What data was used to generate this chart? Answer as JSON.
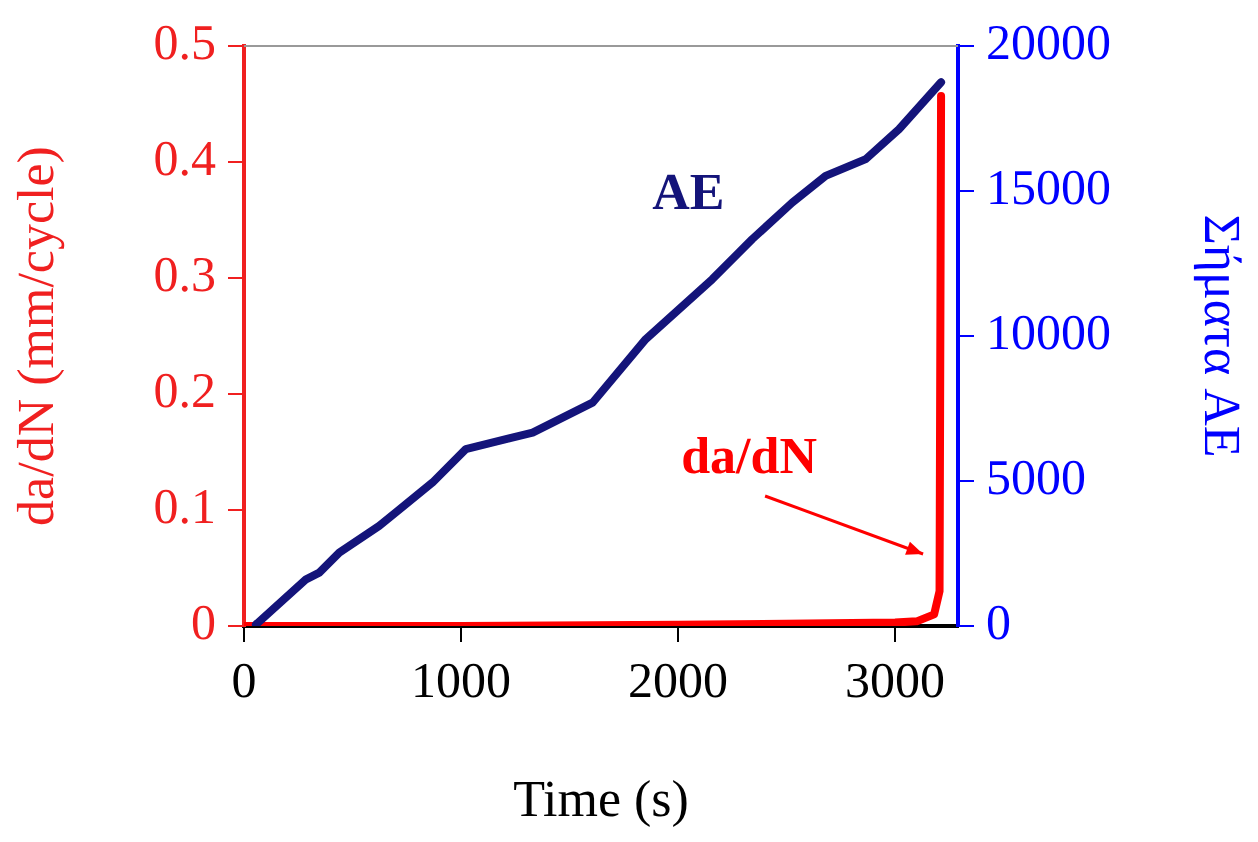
{
  "chart_data": {
    "type": "line",
    "xlabel": "Time (s)",
    "ylabel": "da/dN (mm/cycle)",
    "y2label": "Σήματα AE",
    "xlim": [
      0,
      3290
    ],
    "xticks": [
      0,
      1000,
      2000,
      3000
    ],
    "ylim": [
      0,
      0.5
    ],
    "yticks": [
      0,
      0.1,
      0.2,
      0.3,
      0.4,
      0.5
    ],
    "y2lim": [
      0,
      20000
    ],
    "y2ticks": [
      0,
      5000,
      10000,
      15000,
      20000
    ],
    "grid": false,
    "legend": false,
    "marker": "none",
    "line_style": "solid",
    "series": [
      {
        "name": "AE",
        "color": "#14147a",
        "axis": "y2",
        "x": [
          55,
          286,
          347,
          439,
          623,
          869,
          1022,
          1330,
          1606,
          1851,
          2158,
          2342,
          2526,
          2680,
          2865,
          3018,
          3212
        ],
        "values": [
          50,
          1610,
          1840,
          2530,
          3450,
          4950,
          6100,
          6670,
          7700,
          9890,
          11960,
          13340,
          14600,
          15520,
          16100,
          17130,
          18750
        ]
      },
      {
        "name": "da/dN",
        "color": "#ff0000",
        "x": [
          0,
          1000,
          2000,
          2500,
          3000,
          3100,
          3180,
          3205,
          3212
        ],
        "values": [
          0,
          0,
          0.001,
          0.002,
          0.003,
          0.004,
          0.01,
          0.03,
          0.457
        ]
      }
    ]
  }
}
